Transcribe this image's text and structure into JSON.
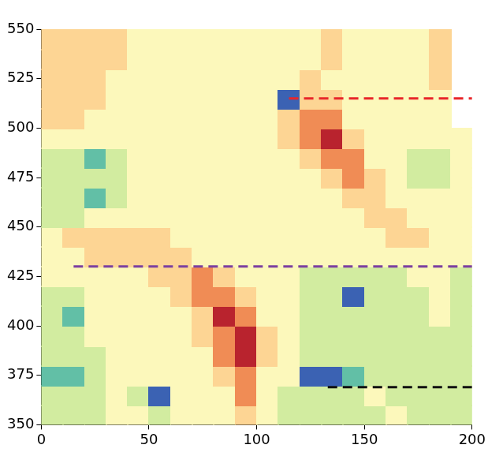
{
  "chart_data": {
    "type": "heatmap",
    "xlim": [
      0,
      200
    ],
    "ylim": [
      350,
      550
    ],
    "xticks": [
      0,
      50,
      100,
      150,
      200
    ],
    "yticks": [
      350,
      375,
      400,
      425,
      450,
      475,
      500,
      525,
      550
    ],
    "grid": false,
    "x_bins": [
      0,
      10,
      20,
      30,
      40,
      50,
      60,
      70,
      80,
      90,
      100,
      110,
      120,
      130,
      140,
      150,
      160,
      170,
      180,
      190,
      200
    ],
    "y_bins": [
      350,
      360,
      370,
      380,
      390,
      400,
      410,
      420,
      430,
      440,
      450,
      460,
      470,
      480,
      490,
      500,
      510,
      520,
      530,
      540,
      550
    ],
    "colors": [
      "#3b62b3",
      "#62bfa6",
      "#d2eca0",
      "#fcf8bb",
      "#fdd594",
      "#f08c55",
      "#b9232e"
    ],
    "cells": [
      [
        2,
        2,
        2,
        3,
        3,
        2,
        3,
        3,
        3,
        4,
        3,
        2,
        2,
        2,
        2,
        2,
        3,
        2,
        2,
        2
      ],
      [
        2,
        2,
        2,
        3,
        2,
        0,
        3,
        3,
        3,
        5,
        3,
        2,
        2,
        2,
        2,
        3,
        2,
        2,
        2,
        2
      ],
      [
        1,
        1,
        2,
        3,
        3,
        3,
        3,
        3,
        4,
        5,
        3,
        3,
        0,
        0,
        1,
        2,
        2,
        2,
        2,
        2
      ],
      [
        2,
        2,
        2,
        3,
        3,
        3,
        3,
        3,
        5,
        6,
        4,
        3,
        2,
        2,
        2,
        2,
        2,
        2,
        2,
        2
      ],
      [
        2,
        2,
        3,
        3,
        3,
        3,
        3,
        4,
        5,
        6,
        4,
        3,
        2,
        2,
        2,
        2,
        2,
        2,
        2,
        2
      ],
      [
        2,
        1,
        3,
        3,
        3,
        3,
        3,
        4,
        6,
        5,
        3,
        3,
        2,
        2,
        2,
        2,
        2,
        2,
        3,
        2
      ],
      [
        2,
        2,
        3,
        3,
        3,
        3,
        4,
        5,
        5,
        4,
        3,
        3,
        2,
        2,
        0,
        2,
        2,
        2,
        3,
        2
      ],
      [
        3,
        3,
        3,
        3,
        3,
        4,
        4,
        5,
        4,
        3,
        3,
        3,
        2,
        2,
        2,
        2,
        2,
        3,
        3,
        2
      ],
      [
        3,
        3,
        4,
        4,
        4,
        4,
        4,
        3,
        3,
        3,
        3,
        3,
        3,
        3,
        3,
        3,
        3,
        3,
        3,
        3
      ],
      [
        3,
        4,
        4,
        4,
        4,
        4,
        3,
        3,
        3,
        3,
        3,
        3,
        3,
        3,
        3,
        3,
        4,
        4,
        3,
        3
      ],
      [
        2,
        2,
        3,
        3,
        3,
        3,
        3,
        3,
        3,
        3,
        3,
        3,
        3,
        3,
        3,
        4,
        4,
        3,
        3,
        3
      ],
      [
        2,
        2,
        1,
        2,
        3,
        3,
        3,
        3,
        3,
        3,
        3,
        3,
        3,
        3,
        4,
        4,
        3,
        3,
        3,
        3
      ],
      [
        2,
        2,
        2,
        2,
        3,
        3,
        3,
        3,
        3,
        3,
        3,
        3,
        3,
        4,
        5,
        4,
        3,
        2,
        2,
        3
      ],
      [
        2,
        2,
        1,
        2,
        3,
        3,
        3,
        3,
        3,
        3,
        3,
        3,
        4,
        5,
        5,
        3,
        3,
        2,
        2,
        3
      ],
      [
        3,
        3,
        3,
        3,
        3,
        3,
        3,
        3,
        3,
        3,
        3,
        4,
        5,
        6,
        4,
        3,
        3,
        3,
        3,
        3
      ],
      [
        4,
        4,
        3,
        3,
        3,
        3,
        3,
        3,
        3,
        3,
        3,
        4,
        5,
        5,
        3,
        3,
        3,
        3,
        3,
        null
      ],
      [
        4,
        4,
        4,
        3,
        3,
        3,
        3,
        3,
        3,
        3,
        3,
        0,
        4,
        4,
        3,
        3,
        3,
        3,
        3,
        null
      ],
      [
        4,
        4,
        4,
        3,
        3,
        3,
        3,
        3,
        3,
        3,
        3,
        3,
        4,
        3,
        3,
        3,
        3,
        3,
        4,
        null
      ],
      [
        4,
        4,
        4,
        4,
        3,
        3,
        3,
        3,
        3,
        3,
        3,
        3,
        3,
        4,
        3,
        3,
        3,
        3,
        4,
        null
      ],
      [
        4,
        4,
        4,
        4,
        3,
        3,
        3,
        3,
        3,
        3,
        3,
        3,
        3,
        4,
        3,
        3,
        3,
        3,
        4,
        null
      ]
    ],
    "lines": [
      {
        "color": "#e8262a",
        "line_style": "dashed",
        "x": [
          115,
          200
        ],
        "y": [
          515,
          515
        ]
      },
      {
        "color": "#7b3fa0",
        "line_style": "dashed",
        "x": [
          15,
          200
        ],
        "y": [
          430,
          430
        ]
      },
      {
        "color": "#111111",
        "line_style": "dashed",
        "x": [
          133,
          200
        ],
        "y": [
          369,
          369
        ]
      }
    ]
  }
}
